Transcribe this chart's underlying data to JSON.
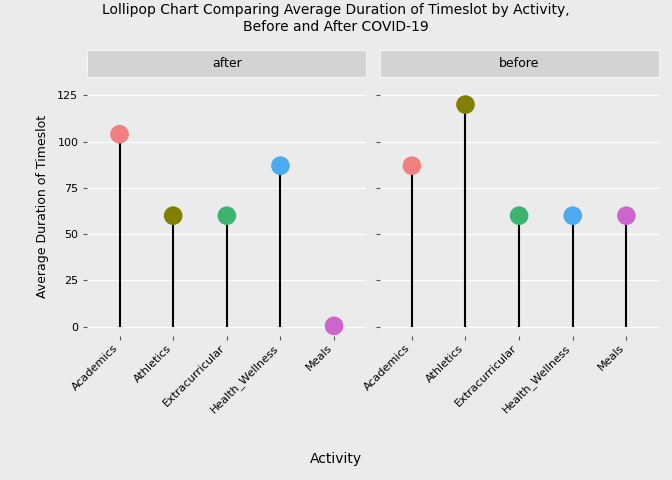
{
  "title": "Lollipop Chart Comparing Average Duration of Timeslot by Activity,\nBefore and After COVID-19",
  "xlabel": "Activity",
  "ylabel": "Average Duration of Timeslot",
  "activities": [
    "Academics",
    "Athletics",
    "Extracurricular",
    "Health_Wellness",
    "Meals"
  ],
  "after_values": [
    104,
    60,
    60,
    87,
    0.5
  ],
  "before_values": [
    87,
    120,
    60,
    60,
    60
  ],
  "colors": {
    "Academics": "#F08080",
    "Athletics": "#808000",
    "Extracurricular": "#3CB371",
    "Health_Wellness": "#4AABF0",
    "Meals": "#CC66CC"
  },
  "ylim": [
    -5,
    135
  ],
  "yticks": [
    0,
    25,
    50,
    75,
    100,
    125
  ],
  "bg_color": "#EBEBEB",
  "panel_strip_bg": "#D3D3D3",
  "lollipop_size": 180,
  "line_width": 1.5,
  "panel_names": [
    "after",
    "before"
  ]
}
